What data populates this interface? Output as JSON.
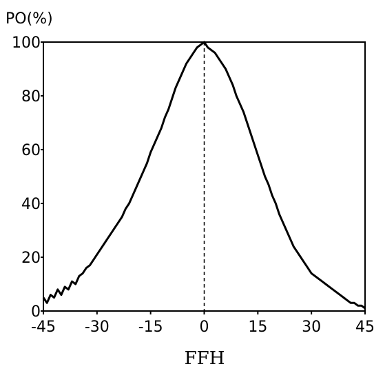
{
  "chart_data": {
    "type": "line",
    "title": "",
    "xlabel": "FFH",
    "ylabel": "PO(%)",
    "xlim": [
      -45,
      45
    ],
    "ylim": [
      0,
      100
    ],
    "xticks": [
      -45,
      -30,
      -15,
      0,
      15,
      30,
      45
    ],
    "yticks": [
      0,
      20,
      40,
      60,
      80,
      100
    ],
    "grid": false,
    "reference_line": {
      "x": 0,
      "style": "dashed"
    },
    "series": [
      {
        "color": "#000000",
        "x": [
          -45,
          -44,
          -43,
          -42,
          -41,
          -40,
          -39,
          -38,
          -37,
          -36,
          -35,
          -34,
          -33,
          -32,
          -31,
          -30,
          -29,
          -28,
          -27,
          -26,
          -25,
          -24,
          -23,
          -22,
          -21,
          -20,
          -19,
          -18,
          -17,
          -16,
          -15,
          -14,
          -13,
          -12,
          -11,
          -10,
          -9,
          -8,
          -7,
          -6,
          -5,
          -4,
          -3,
          -2,
          -1,
          0,
          1,
          2,
          3,
          4,
          5,
          6,
          7,
          8,
          9,
          10,
          11,
          12,
          13,
          14,
          15,
          16,
          17,
          18,
          19,
          20,
          21,
          22,
          23,
          24,
          25,
          26,
          27,
          28,
          29,
          30,
          31,
          32,
          33,
          34,
          35,
          36,
          37,
          38,
          39,
          40,
          41,
          42,
          43,
          44,
          45
        ],
        "y": [
          5,
          3,
          6,
          5,
          8,
          6,
          9,
          8,
          11,
          10,
          13,
          14,
          16,
          17,
          19,
          21,
          23,
          25,
          27,
          29,
          31,
          33,
          35,
          38,
          40,
          43,
          46,
          49,
          52,
          55,
          59,
          62,
          65,
          68,
          72,
          75,
          79,
          83,
          86,
          89,
          92,
          94,
          96,
          98,
          99,
          100,
          98,
          97,
          96,
          94,
          92,
          90,
          87,
          84,
          80,
          77,
          74,
          70,
          66,
          62,
          58,
          54,
          50,
          47,
          43,
          40,
          36,
          33,
          30,
          27,
          24,
          22,
          20,
          18,
          16,
          14,
          13,
          12,
          11,
          10,
          9,
          8,
          7,
          6,
          5,
          4,
          3,
          3,
          2,
          2,
          1
        ]
      }
    ]
  }
}
